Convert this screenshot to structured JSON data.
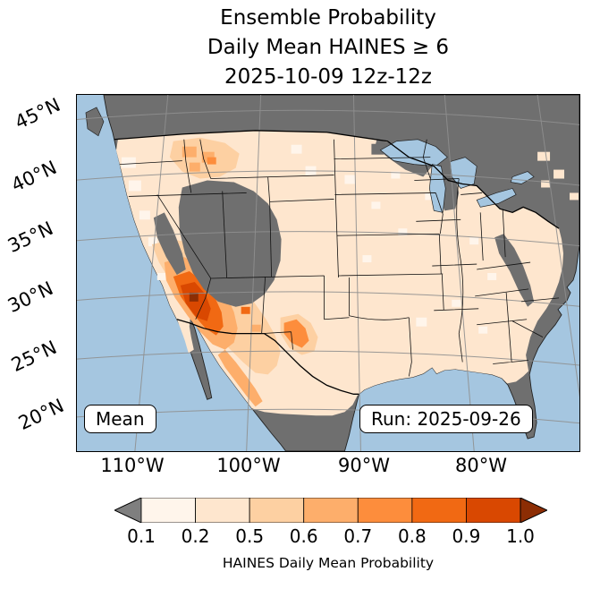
{
  "figure": {
    "title_lines": [
      "Ensemble Probability",
      "Daily Mean HAINES ≥ 6",
      "2025-10-09 12z-12z"
    ]
  },
  "map": {
    "lat_ticks": [
      "45°N",
      "40°N",
      "35°N",
      "30°N",
      "25°N",
      "20°N"
    ],
    "lon_ticks": [
      "110°W",
      "100°W",
      "90°W",
      "80°W"
    ],
    "mean_label": "Mean",
    "run_label": "Run: 2025-09-26",
    "colors": {
      "ocean": "#a5c6e0",
      "masked_land": "#6f6f6f",
      "gridline": "#8f8f8f",
      "boundary": "#000000"
    }
  },
  "colorbar": {
    "label": "HAINES Daily Mean Probability",
    "tick_labels": [
      "0.1",
      "0.2",
      "0.5",
      "0.6",
      "0.7",
      "0.8",
      "0.9",
      "1.0"
    ],
    "segments": [
      "#fff5eb",
      "#fee6ce",
      "#fdd0a2",
      "#fdae6b",
      "#fd8d3c",
      "#f16913",
      "#d94801"
    ],
    "under_color": "#7f7f7f",
    "over_color": "#8c2d04"
  },
  "chart_data": {
    "type": "heatmap",
    "variable": "Probability of Daily Mean HAINES ≥ 6",
    "valid_period": "2025-10-09 12z-12z",
    "model_run": "2025-09-26",
    "probability_levels": [
      0.1,
      0.2,
      0.5,
      0.6,
      0.7,
      0.8,
      0.9,
      1.0
    ],
    "highest_probability_regions": [
      "southeastern Arizona (0.9-1.0)",
      "southern Arizona / southwest New Mexico (0.7-0.9)",
      "northern Sonora and Chihuahua, Mexico (0.5-0.8)",
      "west Texas / Big Bend (0.5-0.6)",
      "southeast Oregon / Idaho / northern Nevada patches (0.5-0.7)"
    ],
    "low_probability_regions": [
      "most of the central and eastern CONUS (0.1-0.2)"
    ],
    "masked_gray_regions": [
      "high terrain of the Great Basin, Utah and Colorado Rockies",
      "Sierra Nevada",
      "upper Great Lakes and Northeast",
      "Atlantic coastal fringe and south Florida",
      "Canada and central Mexico (outside domain)"
    ]
  }
}
